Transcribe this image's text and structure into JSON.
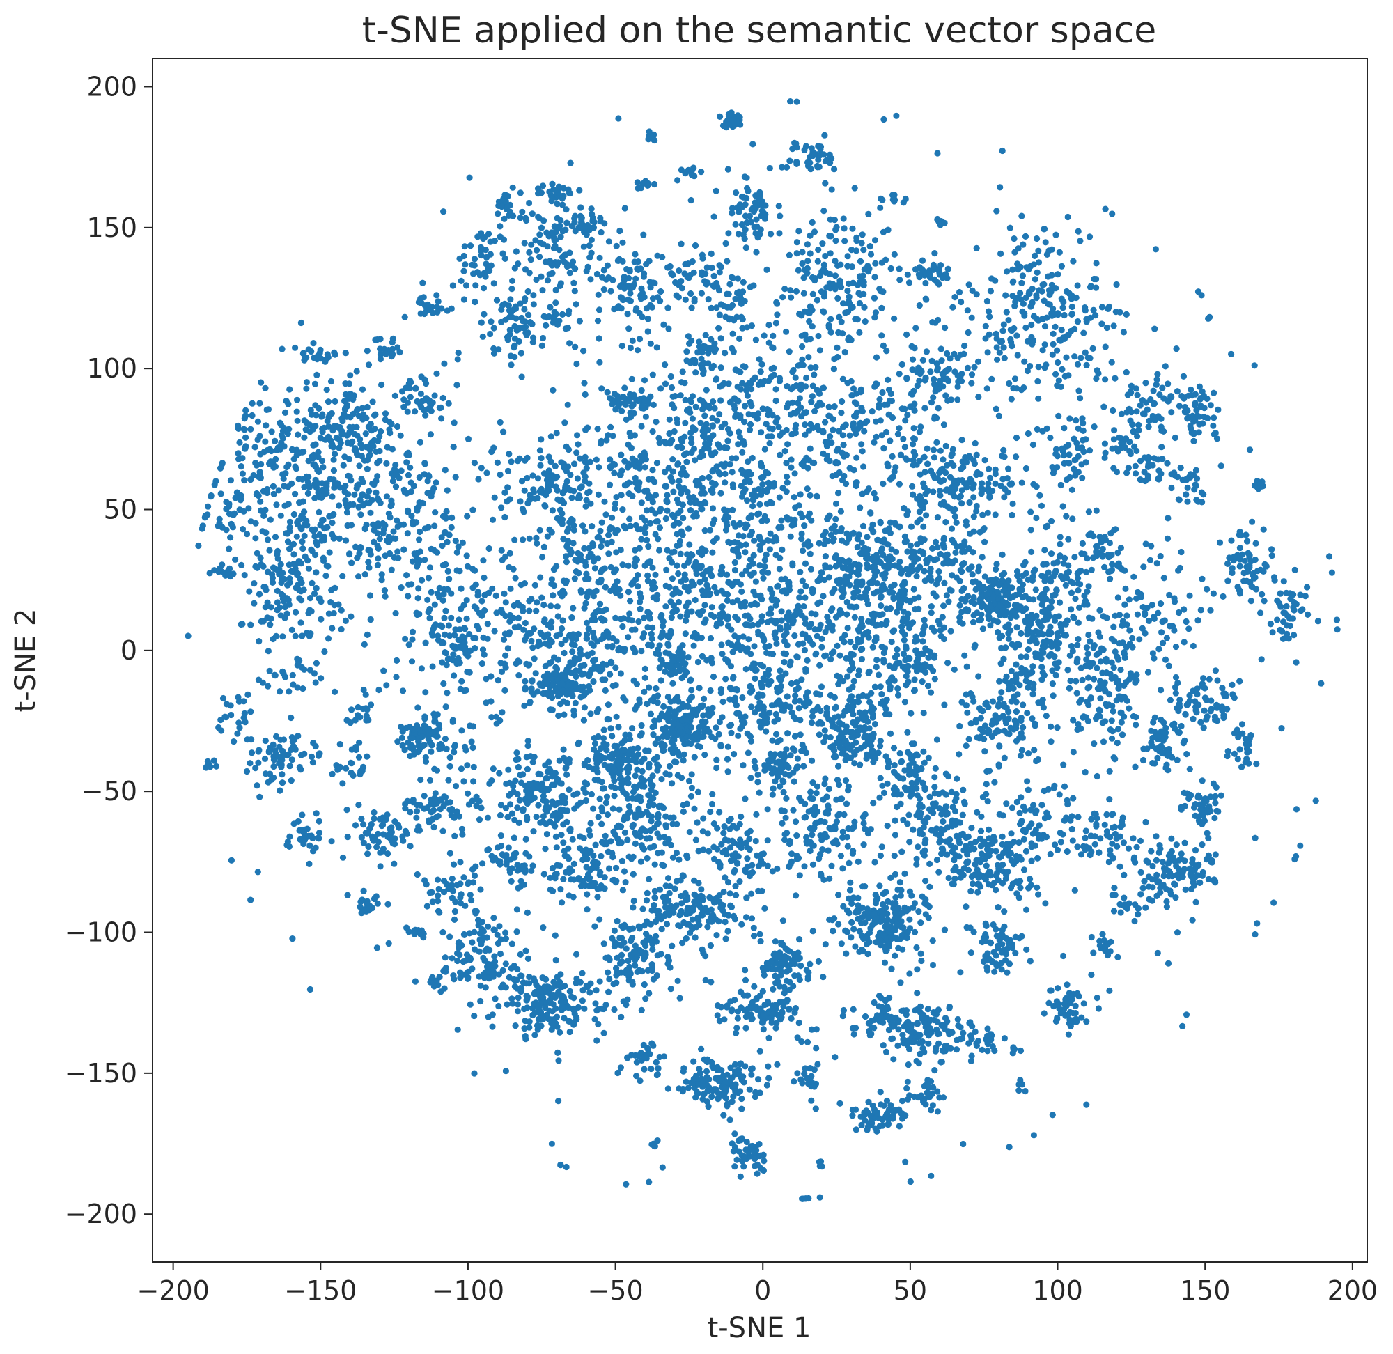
{
  "chart_data": {
    "type": "scatter",
    "title": "t-SNE applied on the semantic vector space",
    "xlabel": "t-SNE 1",
    "ylabel": "t-SNE 2",
    "xlim": [
      -207,
      205
    ],
    "ylim": [
      -217,
      210
    ],
    "xticks": [
      -200,
      -150,
      -100,
      -50,
      0,
      50,
      100,
      150,
      200
    ],
    "yticks": [
      -200,
      -150,
      -100,
      -50,
      0,
      50,
      100,
      150,
      200
    ],
    "xtick_labels": [
      "−200",
      "−150",
      "−100",
      "−50",
      "0",
      "50",
      "100",
      "150",
      "200"
    ],
    "ytick_labels": [
      "−200",
      "−150",
      "−100",
      "−50",
      "0",
      "50",
      "100",
      "150",
      "200"
    ],
    "grid": false,
    "legend": "none",
    "colors": {
      "points": "#1f77b4",
      "axes": "#262626",
      "background": "#ffffff"
    },
    "points_note_visible": false,
    "series": [
      {
        "clusters": [
          {
            "x": -150,
            "y": 55,
            "sx": 18,
            "sy": 20,
            "n": 380
          },
          {
            "x": -140,
            "y": 80,
            "sx": 8,
            "sy": 8,
            "n": 90
          },
          {
            "x": -118,
            "y": 48,
            "sx": 10,
            "sy": 14,
            "n": 110
          },
          {
            "x": -160,
            "y": 20,
            "sx": 8,
            "sy": 8,
            "n": 90
          },
          {
            "x": -168,
            "y": 75,
            "sx": 6,
            "sy": 8,
            "n": 50
          },
          {
            "x": -150,
            "y": 105,
            "sx": 3,
            "sy": 2,
            "n": 18
          },
          {
            "x": -128,
            "y": 107,
            "sx": 3,
            "sy": 2,
            "n": 18
          },
          {
            "x": -115,
            "y": 90,
            "sx": 5,
            "sy": 4,
            "n": 40
          },
          {
            "x": -180,
            "y": 50,
            "sx": 3,
            "sy": 4,
            "n": 20
          },
          {
            "x": -183,
            "y": 28,
            "sx": 2,
            "sy": 1,
            "n": 12
          },
          {
            "x": -163,
            "y": -38,
            "sx": 8,
            "sy": 5,
            "n": 70
          },
          {
            "x": -178,
            "y": -22,
            "sx": 3,
            "sy": 4,
            "n": 20
          },
          {
            "x": -188,
            "y": -41,
            "sx": 1,
            "sy": 1,
            "n": 8
          },
          {
            "x": -160,
            "y": -10,
            "sx": 6,
            "sy": 4,
            "n": 25
          },
          {
            "x": -155,
            "y": -65,
            "sx": 3,
            "sy": 4,
            "n": 30
          },
          {
            "x": -115,
            "y": -32,
            "sx": 5,
            "sy": 4,
            "n": 80
          },
          {
            "x": -108,
            "y": -55,
            "sx": 6,
            "sy": 4,
            "n": 60
          },
          {
            "x": -130,
            "y": -65,
            "sx": 5,
            "sy": 5,
            "n": 60
          },
          {
            "x": -140,
            "y": -40,
            "sx": 3,
            "sy": 3,
            "n": 20
          },
          {
            "x": -135,
            "y": -20,
            "sx": 3,
            "sy": 3,
            "n": 15
          },
          {
            "x": -105,
            "y": -85,
            "sx": 5,
            "sy": 5,
            "n": 40
          },
          {
            "x": -135,
            "y": -90,
            "sx": 3,
            "sy": 2,
            "n": 15
          },
          {
            "x": -118,
            "y": -100,
            "sx": 2,
            "sy": 1,
            "n": 12
          },
          {
            "x": -110,
            "y": -118,
            "sx": 2,
            "sy": 2,
            "n": 10
          },
          {
            "x": -105,
            "y": 10,
            "sx": 10,
            "sy": 12,
            "n": 90
          },
          {
            "x": -103,
            "y": 0,
            "sx": 3,
            "sy": 3,
            "n": 30
          },
          {
            "x": -113,
            "y": 122,
            "sx": 3,
            "sy": 2,
            "n": 20
          },
          {
            "x": -95,
            "y": 140,
            "sx": 4,
            "sy": 5,
            "n": 35
          },
          {
            "x": -87,
            "y": 158,
            "sx": 2,
            "sy": 3,
            "n": 20
          },
          {
            "x": -72,
            "y": 140,
            "sx": 8,
            "sy": 12,
            "n": 130
          },
          {
            "x": -85,
            "y": 115,
            "sx": 6,
            "sy": 6,
            "n": 60
          },
          {
            "x": -70,
            "y": 163,
            "sx": 3,
            "sy": 2,
            "n": 15
          },
          {
            "x": -60,
            "y": 152,
            "sx": 3,
            "sy": 2,
            "n": 25
          },
          {
            "x": -45,
            "y": 130,
            "sx": 8,
            "sy": 10,
            "n": 90
          },
          {
            "x": -38,
            "y": 182,
            "sx": 1,
            "sy": 1,
            "n": 8
          },
          {
            "x": -40,
            "y": 165,
            "sx": 3,
            "sy": 1,
            "n": 8
          },
          {
            "x": -25,
            "y": 170,
            "sx": 2,
            "sy": 2,
            "n": 10
          },
          {
            "x": -20,
            "y": 130,
            "sx": 6,
            "sy": 5,
            "n": 40
          },
          {
            "x": -20,
            "y": 105,
            "sx": 4,
            "sy": 4,
            "n": 30
          },
          {
            "x": -10,
            "y": 188,
            "sx": 2,
            "sy": 2,
            "n": 20
          },
          {
            "x": -5,
            "y": 155,
            "sx": 4,
            "sy": 6,
            "n": 60
          },
          {
            "x": -10,
            "y": 120,
            "sx": 3,
            "sy": 4,
            "n": 25
          },
          {
            "x": 15,
            "y": 175,
            "sx": 6,
            "sy": 3,
            "n": 40
          },
          {
            "x": 25,
            "y": 130,
            "sx": 12,
            "sy": 12,
            "n": 170
          },
          {
            "x": 45,
            "y": 160,
            "sx": 2,
            "sy": 2,
            "n": 10
          },
          {
            "x": 58,
            "y": 134,
            "sx": 4,
            "sy": 2,
            "n": 30
          },
          {
            "x": 60,
            "y": 152,
            "sx": 1,
            "sy": 1,
            "n": 8
          },
          {
            "x": 95,
            "y": 120,
            "sx": 12,
            "sy": 14,
            "n": 220
          },
          {
            "x": 62,
            "y": 98,
            "sx": 6,
            "sy": 5,
            "n": 60
          },
          {
            "x": -70,
            "y": 60,
            "sx": 8,
            "sy": 8,
            "n": 120
          },
          {
            "x": -60,
            "y": 35,
            "sx": 8,
            "sy": 8,
            "n": 60
          },
          {
            "x": -45,
            "y": 88,
            "sx": 4,
            "sy": 3,
            "n": 40
          },
          {
            "x": -45,
            "y": 65,
            "sx": 4,
            "sy": 4,
            "n": 30
          },
          {
            "x": -20,
            "y": 80,
            "sx": 10,
            "sy": 10,
            "n": 90
          },
          {
            "x": 0,
            "y": 90,
            "sx": 12,
            "sy": 10,
            "n": 120
          },
          {
            "x": 35,
            "y": 80,
            "sx": 12,
            "sy": 10,
            "n": 120
          },
          {
            "x": 60,
            "y": 60,
            "sx": 6,
            "sy": 6,
            "n": 80
          },
          {
            "x": 80,
            "y": 60,
            "sx": 6,
            "sy": 6,
            "n": 50
          },
          {
            "x": 105,
            "y": 70,
            "sx": 4,
            "sy": 5,
            "n": 40
          },
          {
            "x": 130,
            "y": 85,
            "sx": 6,
            "sy": 6,
            "n": 60
          },
          {
            "x": 148,
            "y": 85,
            "sx": 4,
            "sy": 5,
            "n": 50
          },
          {
            "x": 130,
            "y": 65,
            "sx": 5,
            "sy": 4,
            "n": 30
          },
          {
            "x": 145,
            "y": 60,
            "sx": 3,
            "sy": 3,
            "n": 25
          },
          {
            "x": 165,
            "y": 30,
            "sx": 4,
            "sy": 6,
            "n": 60
          },
          {
            "x": 178,
            "y": 15,
            "sx": 3,
            "sy": 6,
            "n": 40
          },
          {
            "x": 168,
            "y": 59,
            "sx": 1,
            "sy": 1,
            "n": 8
          },
          {
            "x": 120,
            "y": 73,
            "sx": 3,
            "sy": 2,
            "n": 15
          },
          {
            "x": 115,
            "y": 36,
            "sx": 4,
            "sy": 4,
            "n": 40
          },
          {
            "x": -30,
            "y": 50,
            "sx": 10,
            "sy": 10,
            "n": 100
          },
          {
            "x": 0,
            "y": 50,
            "sx": 12,
            "sy": 12,
            "n": 120
          },
          {
            "x": 35,
            "y": 30,
            "sx": 8,
            "sy": 8,
            "n": 150
          },
          {
            "x": 60,
            "y": 30,
            "sx": 10,
            "sy": 10,
            "n": 100
          },
          {
            "x": 80,
            "y": 18,
            "sx": 6,
            "sy": 5,
            "n": 150
          },
          {
            "x": 95,
            "y": 5,
            "sx": 5,
            "sy": 5,
            "n": 90
          },
          {
            "x": 100,
            "y": 25,
            "sx": 6,
            "sy": 6,
            "n": 60
          },
          {
            "x": -80,
            "y": 10,
            "sx": 10,
            "sy": 12,
            "n": 80
          },
          {
            "x": -50,
            "y": 5,
            "sx": 12,
            "sy": 12,
            "n": 110
          },
          {
            "x": -20,
            "y": 15,
            "sx": 10,
            "sy": 10,
            "n": 100
          },
          {
            "x": 5,
            "y": 10,
            "sx": 10,
            "sy": 10,
            "n": 110
          },
          {
            "x": 40,
            "y": 5,
            "sx": 10,
            "sy": 10,
            "n": 100
          },
          {
            "x": 50,
            "y": -5,
            "sx": 5,
            "sy": 5,
            "n": 50
          },
          {
            "x": 130,
            "y": 10,
            "sx": 10,
            "sy": 10,
            "n": 90
          },
          {
            "x": 150,
            "y": -18,
            "sx": 6,
            "sy": 5,
            "n": 60
          },
          {
            "x": 163,
            "y": -35,
            "sx": 3,
            "sy": 4,
            "n": 25
          },
          {
            "x": 115,
            "y": -15,
            "sx": 5,
            "sy": 10,
            "n": 90
          },
          {
            "x": 80,
            "y": -25,
            "sx": 6,
            "sy": 5,
            "n": 70
          },
          {
            "x": 90,
            "y": -10,
            "sx": 5,
            "sy": 5,
            "n": 40
          },
          {
            "x": 135,
            "y": -33,
            "sx": 5,
            "sy": 5,
            "n": 50
          },
          {
            "x": -68,
            "y": -12,
            "sx": 5,
            "sy": 5,
            "n": 110
          },
          {
            "x": -28,
            "y": -28,
            "sx": 6,
            "sy": 6,
            "n": 130
          },
          {
            "x": -30,
            "y": -5,
            "sx": 3,
            "sy": 3,
            "n": 30
          },
          {
            "x": 5,
            "y": -20,
            "sx": 10,
            "sy": 6,
            "n": 80
          },
          {
            "x": 30,
            "y": -30,
            "sx": 6,
            "sy": 6,
            "n": 120
          },
          {
            "x": -50,
            "y": -40,
            "sx": 6,
            "sy": 6,
            "n": 110
          },
          {
            "x": 5,
            "y": -40,
            "sx": 3,
            "sy": 3,
            "n": 40
          },
          {
            "x": 50,
            "y": -45,
            "sx": 5,
            "sy": 5,
            "n": 60
          },
          {
            "x": -75,
            "y": -50,
            "sx": 8,
            "sy": 6,
            "n": 120
          },
          {
            "x": -85,
            "y": -75,
            "sx": 4,
            "sy": 4,
            "n": 40
          },
          {
            "x": -60,
            "y": -75,
            "sx": 8,
            "sy": 8,
            "n": 110
          },
          {
            "x": -40,
            "y": -60,
            "sx": 8,
            "sy": 8,
            "n": 80
          },
          {
            "x": -25,
            "y": -92,
            "sx": 10,
            "sy": 4,
            "n": 110
          },
          {
            "x": -10,
            "y": -75,
            "sx": 5,
            "sy": 8,
            "n": 60
          },
          {
            "x": 20,
            "y": -65,
            "sx": 8,
            "sy": 8,
            "n": 80
          },
          {
            "x": 40,
            "y": -95,
            "sx": 8,
            "sy": 6,
            "n": 150
          },
          {
            "x": 60,
            "y": -60,
            "sx": 6,
            "sy": 6,
            "n": 70
          },
          {
            "x": 75,
            "y": -75,
            "sx": 8,
            "sy": 6,
            "n": 130
          },
          {
            "x": 95,
            "y": -60,
            "sx": 6,
            "sy": 6,
            "n": 50
          },
          {
            "x": 115,
            "y": -65,
            "sx": 5,
            "sy": 5,
            "n": 50
          },
          {
            "x": 150,
            "y": -55,
            "sx": 3,
            "sy": 3,
            "n": 45
          },
          {
            "x": 140,
            "y": -78,
            "sx": 7,
            "sy": 5,
            "n": 110
          },
          {
            "x": 125,
            "y": -90,
            "sx": 4,
            "sy": 3,
            "n": 20
          },
          {
            "x": -95,
            "y": -110,
            "sx": 7,
            "sy": 7,
            "n": 110
          },
          {
            "x": -72,
            "y": -125,
            "sx": 8,
            "sy": 6,
            "n": 160
          },
          {
            "x": -45,
            "y": -110,
            "sx": 6,
            "sy": 7,
            "n": 90
          },
          {
            "x": -40,
            "y": -145,
            "sx": 4,
            "sy": 3,
            "n": 25
          },
          {
            "x": -15,
            "y": -155,
            "sx": 7,
            "sy": 5,
            "n": 130
          },
          {
            "x": -5,
            "y": -128,
            "sx": 6,
            "sy": 4,
            "n": 50
          },
          {
            "x": 8,
            "y": -112,
            "sx": 4,
            "sy": 4,
            "n": 70
          },
          {
            "x": 5,
            "y": -128,
            "sx": 4,
            "sy": 3,
            "n": 40
          },
          {
            "x": 15,
            "y": -150,
            "sx": 3,
            "sy": 4,
            "n": 20
          },
          {
            "x": -5,
            "y": -178,
            "sx": 3,
            "sy": 3,
            "n": 40
          },
          {
            "x": 38,
            "y": -165,
            "sx": 5,
            "sy": 3,
            "n": 60
          },
          {
            "x": 55,
            "y": -135,
            "sx": 7,
            "sy": 5,
            "n": 110
          },
          {
            "x": 40,
            "y": -130,
            "sx": 6,
            "sy": 4,
            "n": 50
          },
          {
            "x": 55,
            "y": -158,
            "sx": 3,
            "sy": 3,
            "n": 25
          },
          {
            "x": 80,
            "y": -105,
            "sx": 4,
            "sy": 5,
            "n": 50
          },
          {
            "x": 75,
            "y": -138,
            "sx": 3,
            "sy": 2,
            "n": 20
          },
          {
            "x": 103,
            "y": -127,
            "sx": 4,
            "sy": 4,
            "n": 50
          },
          {
            "x": 115,
            "y": -105,
            "sx": 2,
            "sy": 2,
            "n": 15
          },
          {
            "x": -37,
            "y": -175,
            "sx": 1,
            "sy": 1,
            "n": 6
          },
          {
            "x": 20,
            "y": -182,
            "sx": 1,
            "sy": 1,
            "n": 4
          },
          {
            "x": 14,
            "y": -197,
            "sx": 1,
            "sy": 1,
            "n": 8
          },
          {
            "x": 87,
            "y": -155,
            "sx": 1,
            "sy": 1,
            "n": 5
          },
          {
            "x": 85,
            "y": -142,
            "sx": 1,
            "sy": 1,
            "n": 5
          },
          {
            "x": 0,
            "y": 0,
            "sx": 70,
            "sy": 70,
            "n": 1800
          }
        ]
      }
    ]
  }
}
